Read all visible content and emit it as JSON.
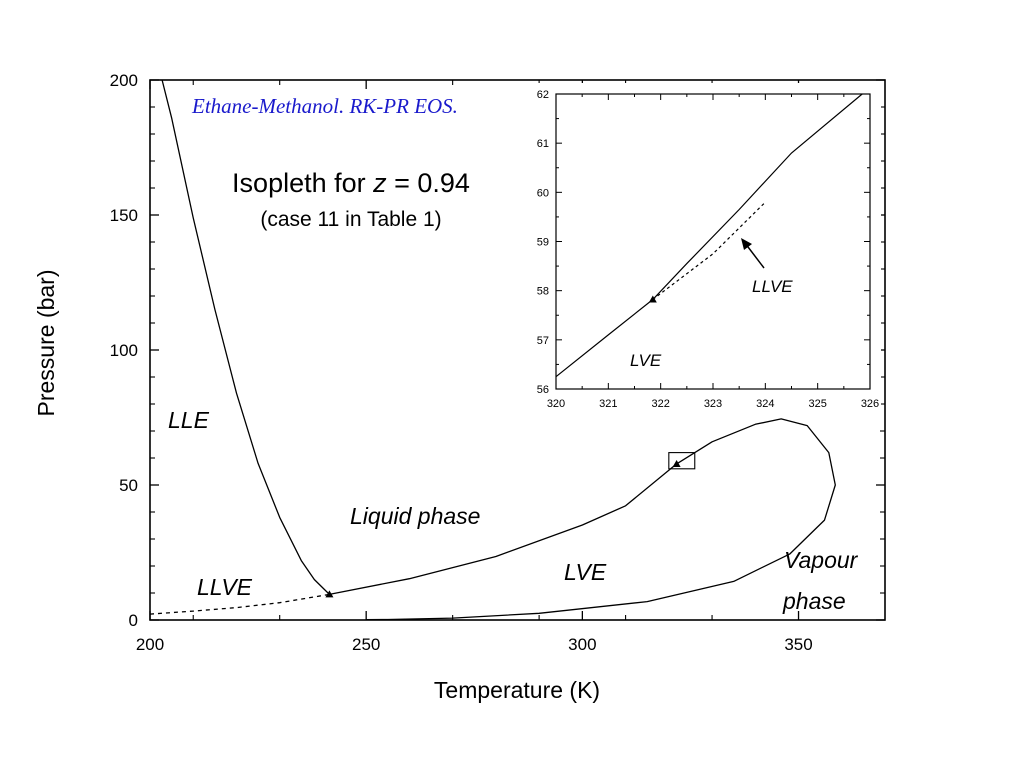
{
  "chart_data": {
    "type": "line",
    "subtitle": "Ethane-Methanol. RK-PR EOS.",
    "subtitle_color": "#1a1acc",
    "title_main_prefix": "Isopleth for ",
    "title_main_var": "z",
    "title_main_suffix": " = 0.94",
    "title_sub": "(case 11 in Table 1)",
    "xlabel": "Temperature (K)",
    "ylabel": "Pressure (bar)",
    "xlim": [
      200,
      370
    ],
    "ylim": [
      0,
      200
    ],
    "x_ticks": [
      200,
      250,
      300,
      350
    ],
    "y_ticks": [
      0,
      50,
      100,
      150,
      200
    ],
    "series": [
      {
        "style": "solid",
        "points": [
          [
            202.8,
            200
          ],
          [
            205,
            186
          ],
          [
            210,
            149
          ],
          [
            215,
            115
          ],
          [
            220,
            84
          ],
          [
            225,
            58
          ],
          [
            230,
            38
          ],
          [
            235,
            22
          ],
          [
            238,
            15
          ],
          [
            241.5,
            9.5
          ]
        ]
      },
      {
        "style": "dashed",
        "points": [
          [
            200,
            2.2
          ],
          [
            210,
            3.3
          ],
          [
            220,
            4.6
          ],
          [
            230,
            6.4
          ],
          [
            241.5,
            9.5
          ]
        ]
      },
      {
        "style": "solid",
        "points": [
          [
            241.5,
            9.5
          ],
          [
            260,
            15.3
          ],
          [
            280,
            23.5
          ],
          [
            300,
            35.2
          ],
          [
            310,
            42.3
          ],
          [
            321.8,
            57.8
          ],
          [
            330,
            66
          ],
          [
            340,
            72.5
          ],
          [
            346,
            74.5
          ],
          [
            352,
            72
          ],
          [
            357,
            62
          ],
          [
            358.5,
            50
          ],
          [
            356,
            37
          ],
          [
            348,
            24.5
          ],
          [
            335,
            14.3
          ],
          [
            315,
            6.8
          ],
          [
            290,
            2.5
          ],
          [
            270,
            0.7
          ],
          [
            255,
            0.2
          ],
          [
            250,
            0.1
          ]
        ]
      }
    ],
    "markers": [
      [
        241.5,
        9.5
      ],
      [
        321.8,
        57.8
      ]
    ],
    "zoom_box": {
      "x": [
        320,
        326
      ],
      "y": [
        56,
        62
      ]
    },
    "inset": {
      "xlim": [
        320,
        326
      ],
      "ylim": [
        56,
        62
      ],
      "x_ticks": [
        320,
        321,
        322,
        323,
        324,
        325,
        326
      ],
      "y_ticks": [
        56,
        57,
        58,
        59,
        60,
        61,
        62
      ],
      "series": [
        {
          "style": "solid",
          "points": [
            [
              320,
              56.25
            ],
            [
              321,
              57.1
            ],
            [
              321.85,
              57.82
            ],
            [
              322.5,
              58.55
            ],
            [
              323.5,
              59.65
            ],
            [
              324.5,
              60.8
            ],
            [
              325.85,
              62
            ]
          ]
        },
        {
          "style": "dashed",
          "points": [
            [
              321.85,
              57.82
            ],
            [
              323,
              58.75
            ],
            [
              324,
              59.8
            ]
          ]
        }
      ],
      "marker": [
        321.85,
        57.82
      ],
      "labels": {
        "llve": "LLVE",
        "lve": "LVE"
      }
    },
    "region_labels": {
      "lle": "LLE",
      "llve": "LLVE",
      "liquid": "Liquid phase",
      "lve": "LVE",
      "vapour1": "Vapour",
      "vapour2": "phase"
    }
  }
}
